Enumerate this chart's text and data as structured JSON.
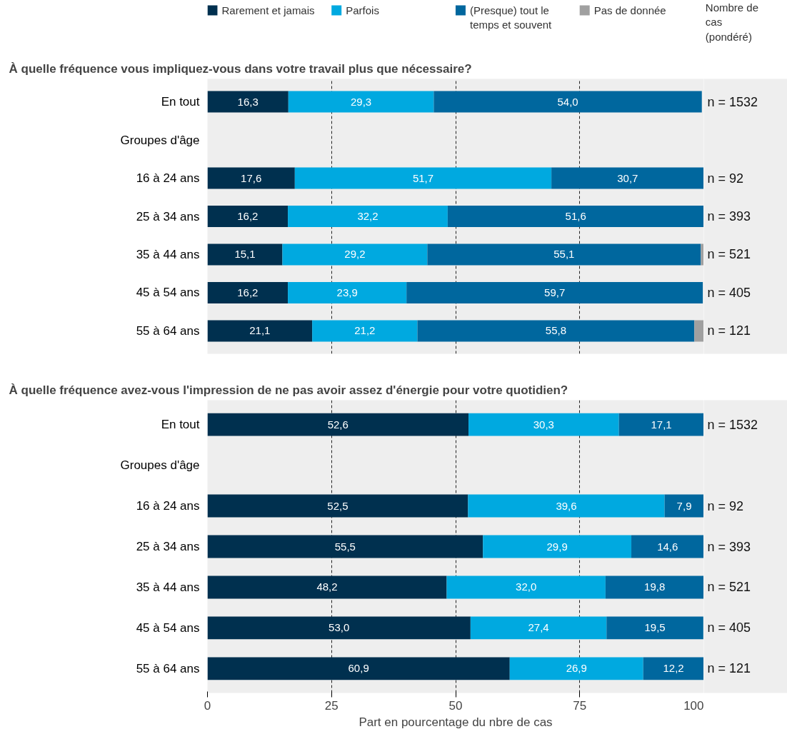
{
  "chart_data": [
    {
      "type": "bar",
      "orientation": "horizontal",
      "stacked": true,
      "title": "À quelle fréquence vous impliquez-vous dans votre travail plus que nécessaire?",
      "categories": [
        "En tout",
        "Groupes d'âge",
        "16 à 24 ans",
        "25 à 34 ans",
        "35 à 44 ans",
        "45 à 54 ans",
        "55 à 64 ans"
      ],
      "series": [
        {
          "name": "Rarement et jamais",
          "color": "#00304f",
          "values": [
            16.3,
            null,
            17.6,
            16.2,
            15.1,
            16.2,
            21.1
          ],
          "value_labels": [
            "16,3",
            null,
            "17,6",
            "16,2",
            "15,1",
            "16,2",
            "21,1"
          ]
        },
        {
          "name": "Parfois",
          "color": "#00a9e0",
          "values": [
            29.3,
            null,
            51.7,
            32.2,
            29.2,
            23.9,
            21.2
          ],
          "value_labels": [
            "29,3",
            null,
            "51,7",
            "32,2",
            "29,2",
            "23,9",
            "21,2"
          ]
        },
        {
          "name": "(Presque) tout le temps et souvent",
          "color": "#00679e",
          "values": [
            54.0,
            null,
            30.7,
            51.6,
            55.1,
            59.7,
            55.8
          ],
          "value_labels": [
            "54,0",
            null,
            "30,7",
            "51,6",
            "55,1",
            "59,7",
            "55,8"
          ]
        },
        {
          "name": "Pas de donnée",
          "color": "#a0a0a0",
          "values": [
            null,
            null,
            null,
            null,
            0.6,
            null,
            1.9
          ]
        }
      ],
      "xlim": [
        0,
        100
      ],
      "xticks": [
        0,
        25,
        50,
        75,
        100
      ],
      "grid": "x",
      "legend": "top",
      "tick_labels": "y",
      "y2_categories": [
        "n = 1532",
        null,
        "n = 92",
        "n = 393",
        "n = 521",
        "n = 405",
        "n = 121"
      ],
      "annotations": [
        "Nombre de cas (pondéré)"
      ]
    },
    {
      "type": "bar",
      "orientation": "horizontal",
      "stacked": true,
      "title": "À quelle fréquence avez-vous l'impression de ne pas avoir assez d'énergie pour votre quotidien?",
      "xlabel": "Part en pourcentage du nbre de cas",
      "categories": [
        "En tout",
        "Groupes d'âge",
        "16 à 24 ans",
        "25 à 34 ans",
        "35 à 44 ans",
        "45 à 54 ans",
        "55 à 64 ans"
      ],
      "series": [
        {
          "color": "#00304f",
          "values": [
            52.6,
            null,
            52.5,
            55.5,
            48.2,
            53.0,
            60.9
          ],
          "value_labels": [
            "52,6",
            null,
            "52,5",
            "55,5",
            "48,2",
            "53,0",
            "60,9"
          ]
        },
        {
          "color": "#00a9e0",
          "values": [
            30.3,
            null,
            39.6,
            29.9,
            32.0,
            27.4,
            26.9
          ],
          "value_labels": [
            "30,3",
            null,
            "39,6",
            "29,9",
            "32,0",
            "27,4",
            "26,9"
          ]
        },
        {
          "color": "#00679e",
          "values": [
            17.1,
            null,
            7.9,
            14.6,
            19.8,
            19.5,
            12.2
          ],
          "value_labels": [
            "17,1",
            null,
            "7,9",
            "14,6",
            "19,8",
            "19,5",
            "12,2"
          ]
        }
      ],
      "xlim": [
        0,
        100
      ],
      "xticks": [
        0,
        25,
        50,
        75,
        100
      ],
      "grid": "x",
      "y2_categories": [
        "n = 1532",
        null,
        "n = 92",
        "n = 393",
        "n = 521",
        "n = 405",
        "n = 121"
      ]
    }
  ]
}
